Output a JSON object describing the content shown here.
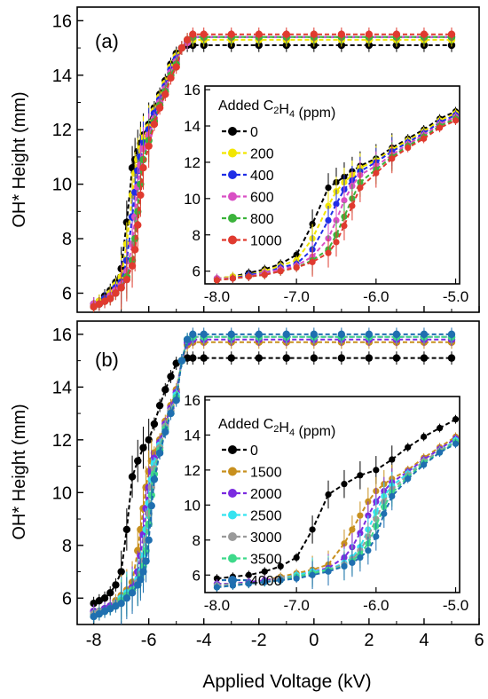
{
  "chart_data": [
    {
      "type": "line",
      "panel_label": "(a)",
      "ylabel": "OH* Height (mm)",
      "ylim": [
        5.3,
        16.5
      ],
      "yticks": [
        6,
        8,
        10,
        12,
        14,
        16
      ],
      "xlim": [
        -8.6,
        6.0
      ],
      "xticks": [
        -8,
        -6,
        -4,
        -2,
        0,
        2,
        4,
        6
      ],
      "inset": {
        "legend_title_prefix": "Added C",
        "legend_title_sub": "2",
        "legend_title_mid": "H",
        "legend_title_sub2": "4",
        "legend_title_suffix": " (ppm)",
        "xlim": [
          -8.15,
          -4.95
        ],
        "ylim": [
          5.3,
          16.2
        ],
        "xticks": [
          -8.0,
          -7.0,
          -6.0,
          -5.0
        ],
        "xtick_labels": [
          "-8.0",
          "-7.0",
          "-6.0",
          "-5.0"
        ],
        "yticks": [
          6,
          8,
          10,
          12,
          14,
          16
        ],
        "x": [
          -8.0,
          -7.8,
          -7.6,
          -7.4,
          -7.2,
          -7.0,
          -6.8,
          -6.6,
          -6.5,
          -6.4,
          -6.3,
          -6.2,
          -6.0,
          -5.8,
          -5.6,
          -5.4,
          -5.2,
          -5.0
        ]
      },
      "series": [
        {
          "name": "0",
          "color": "#000000",
          "x": [
            -8.0,
            -7.8,
            -7.6,
            -7.4,
            -7.2,
            -7.0,
            -6.8,
            -6.6,
            -6.5,
            -6.4,
            -6.3,
            -6.2,
            -6.0,
            -5.8,
            -5.6,
            -5.4,
            -5.2,
            -5.0,
            -4.8,
            -4.6,
            -4.4,
            -4.0,
            -3.0,
            -2.0,
            -1.0,
            0.0,
            1.0,
            2.0,
            3.0,
            4.0,
            5.0
          ],
          "values": [
            5.6,
            5.7,
            5.9,
            6.1,
            6.4,
            6.9,
            8.6,
            10.6,
            10.9,
            11.2,
            11.5,
            11.8,
            12.2,
            12.8,
            13.3,
            13.8,
            14.4,
            14.8,
            15.0,
            15.1,
            15.1,
            15.1,
            15.1,
            15.1,
            15.1,
            15.1,
            15.1,
            15.1,
            15.1,
            15.1,
            15.1
          ]
        },
        {
          "name": "200",
          "color": "#f2e600",
          "x": [
            -8.0,
            -7.8,
            -7.6,
            -7.4,
            -7.2,
            -7.0,
            -6.8,
            -6.6,
            -6.5,
            -6.4,
            -6.3,
            -6.2,
            -6.0,
            -5.8,
            -5.6,
            -5.4,
            -5.2,
            -5.0,
            -4.8,
            -4.6,
            -4.4,
            -4.0,
            -3.0,
            -2.0,
            -1.0,
            0.0,
            1.0,
            2.0,
            3.0,
            4.0,
            5.0
          ],
          "values": [
            5.6,
            5.7,
            5.8,
            6.0,
            6.3,
            6.6,
            7.8,
            9.6,
            10.4,
            10.9,
            11.3,
            11.7,
            12.1,
            12.7,
            13.2,
            13.7,
            14.3,
            14.7,
            15.0,
            15.2,
            15.3,
            15.3,
            15.3,
            15.3,
            15.3,
            15.3,
            15.3,
            15.3,
            15.3,
            15.3,
            15.3
          ]
        },
        {
          "name": "400",
          "color": "#1f2ee6",
          "x": [
            -8.0,
            -7.8,
            -7.6,
            -7.4,
            -7.2,
            -7.0,
            -6.8,
            -6.6,
            -6.5,
            -6.4,
            -6.3,
            -6.2,
            -6.0,
            -5.8,
            -5.6,
            -5.4,
            -5.2,
            -5.0,
            -4.8,
            -4.6,
            -4.4,
            -4.0,
            -3.0,
            -2.0,
            -1.0,
            0.0,
            1.0,
            2.0,
            3.0,
            4.0,
            5.0
          ],
          "values": [
            5.6,
            5.6,
            5.8,
            5.9,
            6.2,
            6.4,
            7.2,
            8.8,
            9.7,
            10.5,
            11.0,
            11.5,
            12.0,
            12.6,
            13.1,
            13.6,
            14.2,
            14.6,
            15.0,
            15.2,
            15.4,
            15.4,
            15.4,
            15.4,
            15.4,
            15.4,
            15.4,
            15.4,
            15.4,
            15.4,
            15.4
          ]
        },
        {
          "name": "600",
          "color": "#d94fc4",
          "x": [
            -8.0,
            -7.8,
            -7.6,
            -7.4,
            -7.2,
            -7.0,
            -6.8,
            -6.6,
            -6.5,
            -6.4,
            -6.3,
            -6.2,
            -6.0,
            -5.8,
            -5.6,
            -5.4,
            -5.2,
            -5.0,
            -4.8,
            -4.6,
            -4.4,
            -4.0,
            -3.0,
            -2.0,
            -1.0,
            0.0,
            1.0,
            2.0,
            3.0,
            4.0,
            5.0
          ],
          "values": [
            5.6,
            5.6,
            5.7,
            5.9,
            6.1,
            6.3,
            6.8,
            7.8,
            8.8,
            9.9,
            10.7,
            11.3,
            11.8,
            12.4,
            13.0,
            13.5,
            14.1,
            14.5,
            15.0,
            15.2,
            15.4,
            15.4,
            15.4,
            15.4,
            15.4,
            15.4,
            15.4,
            15.4,
            15.4,
            15.4,
            15.4
          ]
        },
        {
          "name": "800",
          "color": "#3bb33b",
          "x": [
            -8.0,
            -7.8,
            -7.6,
            -7.4,
            -7.2,
            -7.0,
            -6.8,
            -6.6,
            -6.5,
            -6.4,
            -6.3,
            -6.2,
            -6.0,
            -5.8,
            -5.6,
            -5.4,
            -5.2,
            -5.0,
            -4.8,
            -4.6,
            -4.4,
            -4.0,
            -3.0,
            -2.0,
            -1.0,
            0.0,
            1.0,
            2.0,
            3.0,
            4.0,
            5.0
          ],
          "values": [
            5.5,
            5.6,
            5.7,
            5.8,
            6.0,
            6.2,
            6.6,
            7.2,
            8.0,
            9.0,
            10.0,
            10.9,
            11.6,
            12.3,
            12.9,
            13.4,
            14.0,
            14.4,
            15.0,
            15.3,
            15.4,
            15.4,
            15.4,
            15.4,
            15.4,
            15.4,
            15.4,
            15.4,
            15.4,
            15.4,
            15.4
          ]
        },
        {
          "name": "1000",
          "color": "#e03a2f",
          "x": [
            -8.0,
            -7.8,
            -7.6,
            -7.4,
            -7.2,
            -7.0,
            -6.8,
            -6.6,
            -6.5,
            -6.4,
            -6.3,
            -6.2,
            -6.0,
            -5.8,
            -5.6,
            -5.4,
            -5.2,
            -5.0,
            -4.8,
            -4.6,
            -4.4,
            -4.0,
            -3.0,
            -2.0,
            -1.0,
            0.0,
            1.0,
            2.0,
            3.0,
            4.0,
            5.0
          ],
          "values": [
            5.5,
            5.6,
            5.7,
            5.8,
            6.0,
            6.2,
            6.5,
            7.0,
            7.6,
            8.5,
            9.6,
            10.6,
            11.4,
            12.2,
            12.8,
            13.3,
            13.9,
            14.3,
            15.0,
            15.3,
            15.5,
            15.5,
            15.5,
            15.5,
            15.5,
            15.5,
            15.5,
            15.5,
            15.5,
            15.5,
            15.5
          ]
        }
      ]
    },
    {
      "type": "line",
      "panel_label": "(b)",
      "ylabel": "OH* Height (mm)",
      "xlabel": "Applied Voltage (kV)",
      "ylim": [
        5.0,
        16.5
      ],
      "yticks": [
        6,
        8,
        10,
        12,
        14,
        16
      ],
      "xlim": [
        -8.6,
        6.0
      ],
      "xticks": [
        -8,
        -6,
        -4,
        -2,
        0,
        2,
        4,
        6
      ],
      "inset": {
        "legend_title_prefix": "Added C",
        "legend_title_sub": "2",
        "legend_title_mid": "H",
        "legend_title_sub2": "4",
        "legend_title_suffix": " (ppm)",
        "xlim": [
          -8.15,
          -4.95
        ],
        "ylim": [
          5.0,
          16.2
        ],
        "xticks": [
          -8.0,
          -7.0,
          -6.0,
          -5.0
        ],
        "xtick_labels": [
          "-8.0",
          "-7.0",
          "-6.0",
          "-5.0"
        ],
        "yticks": [
          6,
          8,
          10,
          12,
          14,
          16
        ],
        "x": [
          -8.0,
          -7.8,
          -7.6,
          -7.4,
          -7.2,
          -7.0,
          -6.8,
          -6.6,
          -6.4,
          -6.3,
          -6.2,
          -6.1,
          -6.0,
          -5.9,
          -5.8,
          -5.6,
          -5.4,
          -5.2,
          -5.0
        ]
      },
      "series": [
        {
          "name": "0",
          "color": "#000000",
          "x": [
            -8.0,
            -7.8,
            -7.6,
            -7.4,
            -7.2,
            -7.0,
            -6.8,
            -6.6,
            -6.4,
            -6.2,
            -6.0,
            -5.8,
            -5.6,
            -5.4,
            -5.2,
            -5.0,
            -4.8,
            -4.6,
            -4.4,
            -4.0,
            -3.0,
            -2.0,
            -1.0,
            0.0,
            1.0,
            2.0,
            3.0,
            4.0,
            5.0
          ],
          "values": [
            5.8,
            5.9,
            6.0,
            6.2,
            6.5,
            7.0,
            8.6,
            10.6,
            11.2,
            11.7,
            12.0,
            12.6,
            13.3,
            13.9,
            14.4,
            14.9,
            15.0,
            15.1,
            15.1,
            15.1,
            15.1,
            15.1,
            15.1,
            15.1,
            15.1,
            15.1,
            15.1,
            15.1,
            15.1
          ]
        },
        {
          "name": "1500",
          "color": "#c8901e",
          "x": [
            -8.0,
            -7.8,
            -7.6,
            -7.4,
            -7.2,
            -7.0,
            -6.8,
            -6.6,
            -6.4,
            -6.3,
            -6.2,
            -6.1,
            -6.0,
            -5.9,
            -5.8,
            -5.6,
            -5.4,
            -5.2,
            -5.0,
            -4.8,
            -4.6,
            -4.4,
            -4.0,
            -3.0,
            -2.0,
            -1.0,
            0.0,
            1.0,
            2.0,
            3.0,
            4.0,
            5.0
          ],
          "values": [
            5.5,
            5.5,
            5.6,
            5.7,
            5.9,
            6.1,
            6.3,
            6.6,
            7.8,
            8.6,
            9.4,
            10.2,
            10.8,
            11.2,
            11.5,
            12.0,
            12.7,
            13.3,
            13.9,
            15.0,
            15.6,
            15.7,
            15.7,
            15.7,
            15.7,
            15.7,
            15.7,
            15.7,
            15.7,
            15.7,
            15.7,
            15.7
          ]
        },
        {
          "name": "2000",
          "color": "#7b2be0",
          "x": [
            -8.0,
            -7.8,
            -7.6,
            -7.4,
            -7.2,
            -7.0,
            -6.8,
            -6.6,
            -6.4,
            -6.3,
            -6.2,
            -6.1,
            -6.0,
            -5.9,
            -5.8,
            -5.6,
            -5.4,
            -5.2,
            -5.0,
            -4.8,
            -4.6,
            -4.4,
            -4.0,
            -3.0,
            -2.0,
            -1.0,
            0.0,
            1.0,
            2.0,
            3.0,
            4.0,
            5.0
          ],
          "values": [
            5.5,
            5.5,
            5.6,
            5.7,
            5.8,
            6.0,
            6.2,
            6.4,
            7.0,
            7.6,
            8.4,
            9.4,
            10.2,
            10.8,
            11.3,
            11.9,
            12.6,
            13.2,
            13.8,
            15.0,
            15.7,
            15.8,
            15.8,
            15.8,
            15.8,
            15.8,
            15.8,
            15.8,
            15.8,
            15.8,
            15.8,
            15.8
          ]
        },
        {
          "name": "2500",
          "color": "#35e3f0",
          "x": [
            -8.0,
            -7.8,
            -7.6,
            -7.4,
            -7.2,
            -7.0,
            -6.8,
            -6.6,
            -6.4,
            -6.3,
            -6.2,
            -6.1,
            -6.0,
            -5.9,
            -5.8,
            -5.6,
            -5.4,
            -5.2,
            -5.0,
            -4.8,
            -4.6,
            -4.4,
            -4.0,
            -3.0,
            -2.0,
            -1.0,
            0.0,
            1.0,
            2.0,
            3.0,
            4.0,
            5.0
          ],
          "values": [
            5.4,
            5.5,
            5.5,
            5.6,
            5.8,
            6.0,
            6.2,
            6.3,
            6.7,
            7.0,
            7.6,
            8.6,
            9.6,
            10.5,
            11.1,
            11.8,
            12.5,
            13.1,
            13.7,
            15.0,
            15.8,
            15.9,
            15.9,
            15.9,
            15.9,
            15.9,
            15.9,
            15.9,
            15.9,
            15.9,
            15.9,
            15.9
          ]
        },
        {
          "name": "3000",
          "color": "#9a9a9a",
          "x": [
            -8.0,
            -7.8,
            -7.6,
            -7.4,
            -7.2,
            -7.0,
            -6.8,
            -6.6,
            -6.4,
            -6.3,
            -6.2,
            -6.1,
            -6.0,
            -5.9,
            -5.8,
            -5.6,
            -5.4,
            -5.2,
            -5.0,
            -4.8,
            -4.6,
            -4.4,
            -4.0,
            -3.0,
            -2.0,
            -1.0,
            0.0,
            1.0,
            2.0,
            3.0,
            4.0,
            5.0
          ],
          "values": [
            5.4,
            5.5,
            5.5,
            5.6,
            5.8,
            5.9,
            6.1,
            6.3,
            6.6,
            6.9,
            7.4,
            8.2,
            9.2,
            10.2,
            10.9,
            11.7,
            12.5,
            13.1,
            13.6,
            15.0,
            15.8,
            15.9,
            15.9,
            15.9,
            15.9,
            15.9,
            15.9,
            15.9,
            15.9,
            15.9,
            15.9,
            15.9
          ]
        },
        {
          "name": "3500",
          "color": "#3ed98a",
          "x": [
            -8.0,
            -7.8,
            -7.6,
            -7.4,
            -7.2,
            -7.0,
            -6.8,
            -6.6,
            -6.4,
            -6.3,
            -6.2,
            -6.1,
            -6.0,
            -5.9,
            -5.8,
            -5.6,
            -5.4,
            -5.2,
            -5.0,
            -4.8,
            -4.6,
            -4.4,
            -4.0,
            -3.0,
            -2.0,
            -1.0,
            0.0,
            1.0,
            2.0,
            3.0,
            4.0,
            5.0
          ],
          "values": [
            5.3,
            5.4,
            5.5,
            5.6,
            5.7,
            5.9,
            6.1,
            6.3,
            6.5,
            6.8,
            7.2,
            7.8,
            8.8,
            9.9,
            10.7,
            11.6,
            12.4,
            13.0,
            13.6,
            15.0,
            15.8,
            15.9,
            15.9,
            15.9,
            15.9,
            15.9,
            15.9,
            15.9,
            15.9,
            15.9,
            15.9,
            15.9
          ]
        },
        {
          "name": "4000",
          "color": "#1f6fb0",
          "x": [
            -8.0,
            -7.8,
            -7.6,
            -7.4,
            -7.2,
            -7.0,
            -6.8,
            -6.6,
            -6.4,
            -6.3,
            -6.2,
            -6.1,
            -6.0,
            -5.9,
            -5.8,
            -5.6,
            -5.4,
            -5.2,
            -5.0,
            -4.8,
            -4.6,
            -4.4,
            -4.0,
            -3.0,
            -2.0,
            -1.0,
            0.0,
            1.0,
            2.0,
            3.0,
            4.0,
            5.0
          ],
          "values": [
            5.3,
            5.4,
            5.5,
            5.6,
            5.7,
            5.8,
            6.0,
            6.2,
            6.5,
            6.7,
            7.0,
            7.4,
            8.2,
            9.5,
            10.5,
            11.5,
            12.3,
            13.0,
            13.5,
            15.0,
            15.8,
            16.0,
            16.0,
            16.0,
            16.0,
            16.0,
            16.0,
            16.0,
            16.0,
            16.0,
            16.0,
            16.0
          ]
        }
      ]
    }
  ]
}
